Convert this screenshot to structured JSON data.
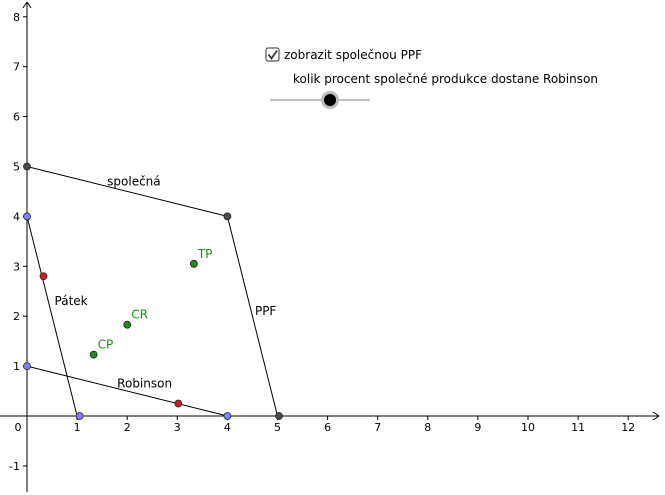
{
  "axes": {
    "x_ticks": [
      "1",
      "2",
      "3",
      "4",
      "5",
      "6",
      "7",
      "8",
      "9",
      "10",
      "11",
      "12"
    ],
    "y_ticks": [
      "-1",
      "1",
      "2",
      "3",
      "4",
      "5",
      "6",
      "7",
      "8"
    ],
    "origin_label": "0"
  },
  "colors": {
    "line": "#000000",
    "dark_point": "#4a4a4a",
    "blue_point": "#8080ff",
    "red_point": "#cc2020",
    "green_point": "#1e8c1e",
    "green_label": "#1a8f1a",
    "slider_track": "#808080",
    "slider_knob": "#000000"
  },
  "controls": {
    "checkbox_label": "zobrazit společnou PPF",
    "checkbox_checked": true,
    "slider_label": "kolik procent společné produkce dostane Robinson",
    "slider_value": 0.6
  },
  "segments": [
    {
      "name": "spolecna-top",
      "from": [
        0,
        5
      ],
      "to": [
        4,
        4
      ]
    },
    {
      "name": "ppf-right",
      "from": [
        4,
        4
      ],
      "to": [
        5,
        0
      ]
    },
    {
      "name": "patek-line",
      "from": [
        0,
        4
      ],
      "to": [
        1,
        0
      ]
    },
    {
      "name": "robinson-line",
      "from": [
        0,
        1
      ],
      "to": [
        4,
        0
      ]
    }
  ],
  "line_labels": [
    {
      "name": "label-spolecna",
      "text": "společná",
      "x": 1.6,
      "y": 4.7
    },
    {
      "name": "label-ppf",
      "text": "PPF",
      "x": 4.55,
      "y": 2.1
    },
    {
      "name": "label-patek",
      "text": "Pátek",
      "x": 0.55,
      "y": 2.3
    },
    {
      "name": "label-robinson",
      "text": "Robinson",
      "x": 1.8,
      "y": 0.65
    }
  ],
  "points": [
    {
      "name": "point-spolecna-y",
      "x": 0,
      "y": 5,
      "kind": "dark"
    },
    {
      "name": "point-spolecna-corner",
      "x": 4,
      "y": 4,
      "kind": "dark"
    },
    {
      "name": "point-spolecna-x",
      "x": 5.03,
      "y": 0,
      "kind": "dark"
    },
    {
      "name": "point-patek-y",
      "x": 0,
      "y": 4,
      "kind": "blue"
    },
    {
      "name": "point-patek-x",
      "x": 1.05,
      "y": 0,
      "kind": "blue"
    },
    {
      "name": "point-robinson-y",
      "x": 0,
      "y": 1,
      "kind": "blue"
    },
    {
      "name": "point-robinson-x",
      "x": 4,
      "y": 0,
      "kind": "blue"
    },
    {
      "name": "point-patek-red",
      "x": 0.33,
      "y": 2.8,
      "kind": "red"
    },
    {
      "name": "point-robinson-red",
      "x": 3.02,
      "y": 0.25,
      "kind": "red"
    },
    {
      "name": "point-tp",
      "x": 3.33,
      "y": 3.05,
      "kind": "green",
      "label": "TP"
    },
    {
      "name": "point-cr",
      "x": 2.0,
      "y": 1.83,
      "kind": "green",
      "label": "CR"
    },
    {
      "name": "point-cp",
      "x": 1.33,
      "y": 1.23,
      "kind": "green",
      "label": "CP"
    }
  ]
}
